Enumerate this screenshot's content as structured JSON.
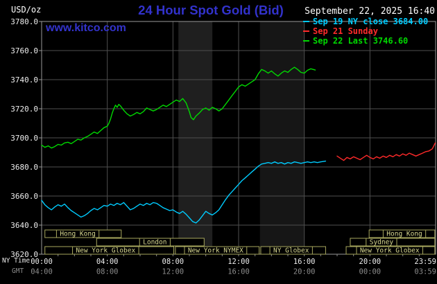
{
  "header": {
    "units": "USD/oz",
    "title": "24 Hour Spot Gold (Bid)",
    "datetime": "September 22, 2025 16:40",
    "watermark": "www.kitco.com"
  },
  "legend": {
    "items": [
      {
        "label": "Sep 19 NY close 3684.00",
        "color": "#00ccff"
      },
      {
        "label": "Sep 21 Sunday",
        "color": "#ff2a2a"
      },
      {
        "label": "Sep 22 Last 3746.60",
        "color": "#00d900"
      }
    ]
  },
  "axis": {
    "ny_time_label": "NY Time",
    "gmt_label": "GMT"
  },
  "colors": {
    "background": "#000000",
    "title": "#3232cc",
    "watermark": "#3333cc",
    "grid": "#4f4f4f",
    "frame": "#9a9a9a",
    "axis_text": "#eeeeee",
    "gmt_text": "#8c8c8c",
    "session": "#a8a85e",
    "session_text": "#d8d890"
  },
  "chart_data": {
    "type": "line",
    "title": "24 Hour Spot Gold (Bid)",
    "ylabel": "USD/oz",
    "ylim": [
      3620,
      3780
    ],
    "xlim_hours": [
      0,
      24
    ],
    "grid": true,
    "legend_position": "top-right",
    "y_ticks": [
      {
        "value": 3780,
        "label": "3780.0"
      },
      {
        "value": 3760,
        "label": "3760.0"
      },
      {
        "value": 3740,
        "label": "3740.0"
      },
      {
        "value": 3720,
        "label": "3720.0"
      },
      {
        "value": 3700,
        "label": "3700.0"
      },
      {
        "value": 3680,
        "label": "3680.0"
      },
      {
        "value": 3660,
        "label": "3660.0"
      },
      {
        "value": 3640,
        "label": "3640.0"
      },
      {
        "value": 3620,
        "label": "3620.0"
      }
    ],
    "x_ticks": [
      {
        "hour": 0,
        "ny": "00:00",
        "gmt": "04:00"
      },
      {
        "hour": 4,
        "ny": "04:00",
        "gmt": "08:00"
      },
      {
        "hour": 8,
        "ny": "08:00",
        "gmt": "12:00"
      },
      {
        "hour": 12,
        "ny": "12:00",
        "gmt": "16:00"
      },
      {
        "hour": 16,
        "ny": "16:00",
        "gmt": "20:00"
      },
      {
        "hour": 20,
        "ny": "20:00",
        "gmt": "00:00"
      },
      {
        "hour": 23.983,
        "ny": "23:59",
        "gmt": "03:59"
      }
    ],
    "bands": [
      {
        "from_hour": 8.33,
        "to_hour": 10.4,
        "color": "#1f1f1f"
      },
      {
        "from_hour": 13.3,
        "to_hour": 16.0,
        "color": "#161616"
      }
    ],
    "sessions": [
      {
        "row": 0,
        "start": 0.2,
        "end": 4.85,
        "label": "Hong Kong",
        "label_center": 2.2
      },
      {
        "row": 0,
        "start": 19.95,
        "end": 23.95,
        "label": "Hong Kong",
        "label_center": 22.1
      },
      {
        "row": 1,
        "start": 3.35,
        "end": 9.9,
        "label": "London",
        "label_center": 6.9
      },
      {
        "row": 1,
        "start": 18.8,
        "end": 23.95,
        "label": "Sydney",
        "label_center": 20.7
      },
      {
        "row": 2,
        "start": 0.2,
        "end": 8.05,
        "label": "New York Globex",
        "label_center": 3.9
      },
      {
        "row": 2,
        "start": 8.15,
        "end": 13.25,
        "label": "New York NYMEX",
        "label_center": 10.6
      },
      {
        "row": 2,
        "start": 13.35,
        "end": 17.3,
        "label": "NY Globex",
        "label_center": 15.2
      },
      {
        "row": 2,
        "start": 18.55,
        "end": 23.95,
        "label": "New York Globex",
        "label_center": 21.2
      }
    ],
    "series": [
      {
        "name": "Sep 22 Last 3746.60",
        "color": "#00d900",
        "points": [
          [
            0,
            3695
          ],
          [
            0.2,
            3693.5
          ],
          [
            0.4,
            3694.5
          ],
          [
            0.6,
            3693
          ],
          [
            0.8,
            3694
          ],
          [
            1,
            3695.5
          ],
          [
            1.2,
            3695
          ],
          [
            1.4,
            3696.5
          ],
          [
            1.6,
            3697
          ],
          [
            1.8,
            3696
          ],
          [
            2,
            3697.5
          ],
          [
            2.2,
            3699
          ],
          [
            2.4,
            3698.5
          ],
          [
            2.6,
            3700
          ],
          [
            2.8,
            3701
          ],
          [
            3,
            3702.5
          ],
          [
            3.2,
            3704
          ],
          [
            3.4,
            3703
          ],
          [
            3.6,
            3705
          ],
          [
            3.8,
            3707
          ],
          [
            4,
            3708
          ],
          [
            4.1,
            3710
          ],
          [
            4.2,
            3713
          ],
          [
            4.3,
            3717
          ],
          [
            4.4,
            3720
          ],
          [
            4.5,
            3722.5
          ],
          [
            4.6,
            3721
          ],
          [
            4.7,
            3723
          ],
          [
            4.8,
            3722
          ],
          [
            5,
            3719
          ],
          [
            5.2,
            3716.5
          ],
          [
            5.4,
            3715
          ],
          [
            5.6,
            3716
          ],
          [
            5.8,
            3717.5
          ],
          [
            6,
            3716.5
          ],
          [
            6.2,
            3718
          ],
          [
            6.4,
            3720.5
          ],
          [
            6.6,
            3719.5
          ],
          [
            6.8,
            3718.5
          ],
          [
            7,
            3719.5
          ],
          [
            7.2,
            3721
          ],
          [
            7.4,
            3722.5
          ],
          [
            7.6,
            3721.5
          ],
          [
            7.8,
            3723
          ],
          [
            8,
            3724.5
          ],
          [
            8.2,
            3726
          ],
          [
            8.4,
            3725
          ],
          [
            8.6,
            3727
          ],
          [
            8.8,
            3724
          ],
          [
            9,
            3718
          ],
          [
            9.1,
            3714
          ],
          [
            9.25,
            3712.5
          ],
          [
            9.4,
            3715
          ],
          [
            9.6,
            3717
          ],
          [
            9.8,
            3719.5
          ],
          [
            10,
            3720.5
          ],
          [
            10.2,
            3719
          ],
          [
            10.4,
            3721
          ],
          [
            10.6,
            3720
          ],
          [
            10.8,
            3718.5
          ],
          [
            11,
            3720
          ],
          [
            11.2,
            3723
          ],
          [
            11.4,
            3726
          ],
          [
            11.6,
            3729
          ],
          [
            11.8,
            3732
          ],
          [
            12,
            3735
          ],
          [
            12.2,
            3736.5
          ],
          [
            12.4,
            3735.5
          ],
          [
            12.6,
            3737
          ],
          [
            12.8,
            3738.5
          ],
          [
            13,
            3740
          ],
          [
            13.2,
            3744
          ],
          [
            13.4,
            3747
          ],
          [
            13.6,
            3746
          ],
          [
            13.8,
            3744.5
          ],
          [
            14,
            3746
          ],
          [
            14.2,
            3744
          ],
          [
            14.4,
            3742.5
          ],
          [
            14.6,
            3744.5
          ],
          [
            14.8,
            3746
          ],
          [
            15,
            3745
          ],
          [
            15.2,
            3747
          ],
          [
            15.4,
            3748.5
          ],
          [
            15.6,
            3747
          ],
          [
            15.8,
            3745
          ],
          [
            16,
            3744.5
          ],
          [
            16.2,
            3746.5
          ],
          [
            16.4,
            3747.5
          ],
          [
            16.67,
            3746.6
          ]
        ]
      },
      {
        "name": "Sep 19 NY close 3684.00",
        "color": "#00ccff",
        "points": [
          [
            0,
            3657
          ],
          [
            0.2,
            3654
          ],
          [
            0.4,
            3652
          ],
          [
            0.6,
            3650.5
          ],
          [
            0.8,
            3652.5
          ],
          [
            1,
            3654
          ],
          [
            1.2,
            3653
          ],
          [
            1.4,
            3654.5
          ],
          [
            1.6,
            3652
          ],
          [
            1.8,
            3650
          ],
          [
            2,
            3648.5
          ],
          [
            2.2,
            3647
          ],
          [
            2.4,
            3645.5
          ],
          [
            2.6,
            3646.5
          ],
          [
            2.8,
            3648
          ],
          [
            3,
            3650
          ],
          [
            3.2,
            3651.5
          ],
          [
            3.4,
            3650.5
          ],
          [
            3.6,
            3652
          ],
          [
            3.8,
            3653.5
          ],
          [
            4,
            3653
          ],
          [
            4.2,
            3654.5
          ],
          [
            4.4,
            3653.5
          ],
          [
            4.6,
            3655
          ],
          [
            4.8,
            3654
          ],
          [
            5,
            3655.5
          ],
          [
            5.2,
            3653
          ],
          [
            5.4,
            3650.5
          ],
          [
            5.6,
            3651.5
          ],
          [
            5.8,
            3653
          ],
          [
            6,
            3654.5
          ],
          [
            6.2,
            3653.5
          ],
          [
            6.4,
            3655
          ],
          [
            6.6,
            3654
          ],
          [
            6.8,
            3655.5
          ],
          [
            7,
            3655
          ],
          [
            7.2,
            3653.5
          ],
          [
            7.4,
            3652
          ],
          [
            7.6,
            3651
          ],
          [
            7.8,
            3650
          ],
          [
            8,
            3650.5
          ],
          [
            8.2,
            3649
          ],
          [
            8.4,
            3648
          ],
          [
            8.6,
            3649.5
          ],
          [
            8.8,
            3647.5
          ],
          [
            9,
            3645
          ],
          [
            9.2,
            3642.5
          ],
          [
            9.4,
            3641.5
          ],
          [
            9.6,
            3643.5
          ],
          [
            9.8,
            3646.5
          ],
          [
            10,
            3649.5
          ],
          [
            10.2,
            3648
          ],
          [
            10.4,
            3647
          ],
          [
            10.6,
            3648.5
          ],
          [
            10.8,
            3650.5
          ],
          [
            11,
            3654
          ],
          [
            11.2,
            3657.5
          ],
          [
            11.4,
            3660.5
          ],
          [
            11.6,
            3663
          ],
          [
            11.8,
            3665.5
          ],
          [
            12,
            3668
          ],
          [
            12.2,
            3670.5
          ],
          [
            12.4,
            3672.5
          ],
          [
            12.6,
            3674.5
          ],
          [
            12.8,
            3676.5
          ],
          [
            13,
            3678.5
          ],
          [
            13.2,
            3680.5
          ],
          [
            13.4,
            3682
          ],
          [
            13.6,
            3682.5
          ],
          [
            13.8,
            3683
          ],
          [
            14,
            3682.5
          ],
          [
            14.2,
            3683.5
          ],
          [
            14.4,
            3682.5
          ],
          [
            14.6,
            3683
          ],
          [
            14.8,
            3682
          ],
          [
            15,
            3683
          ],
          [
            15.2,
            3682.5
          ],
          [
            15.4,
            3683.5
          ],
          [
            15.6,
            3683
          ],
          [
            15.8,
            3682.5
          ],
          [
            16,
            3683
          ],
          [
            16.2,
            3683.5
          ],
          [
            16.4,
            3683
          ],
          [
            16.6,
            3683.5
          ],
          [
            16.8,
            3683
          ],
          [
            17,
            3683.5
          ],
          [
            17.3,
            3684
          ]
        ]
      },
      {
        "name": "Sep 21 Sunday",
        "color": "#ff2a2a",
        "points": [
          [
            18,
            3687.5
          ],
          [
            18.2,
            3686
          ],
          [
            18.4,
            3684.5
          ],
          [
            18.6,
            3686.5
          ],
          [
            18.8,
            3685.5
          ],
          [
            19,
            3687
          ],
          [
            19.2,
            3686
          ],
          [
            19.4,
            3685
          ],
          [
            19.6,
            3686.5
          ],
          [
            19.8,
            3688
          ],
          [
            20,
            3686.5
          ],
          [
            20.2,
            3685.5
          ],
          [
            20.4,
            3687
          ],
          [
            20.6,
            3686
          ],
          [
            20.8,
            3687.5
          ],
          [
            21,
            3686.5
          ],
          [
            21.2,
            3688
          ],
          [
            21.4,
            3687
          ],
          [
            21.6,
            3688.5
          ],
          [
            21.8,
            3687.5
          ],
          [
            22,
            3689
          ],
          [
            22.2,
            3688
          ],
          [
            22.4,
            3689.5
          ],
          [
            22.6,
            3688.5
          ],
          [
            22.8,
            3687.5
          ],
          [
            23,
            3688.5
          ],
          [
            23.2,
            3689.5
          ],
          [
            23.4,
            3690.5
          ],
          [
            23.6,
            3691
          ],
          [
            23.8,
            3692.5
          ],
          [
            23.98,
            3696.5
          ]
        ]
      }
    ]
  }
}
